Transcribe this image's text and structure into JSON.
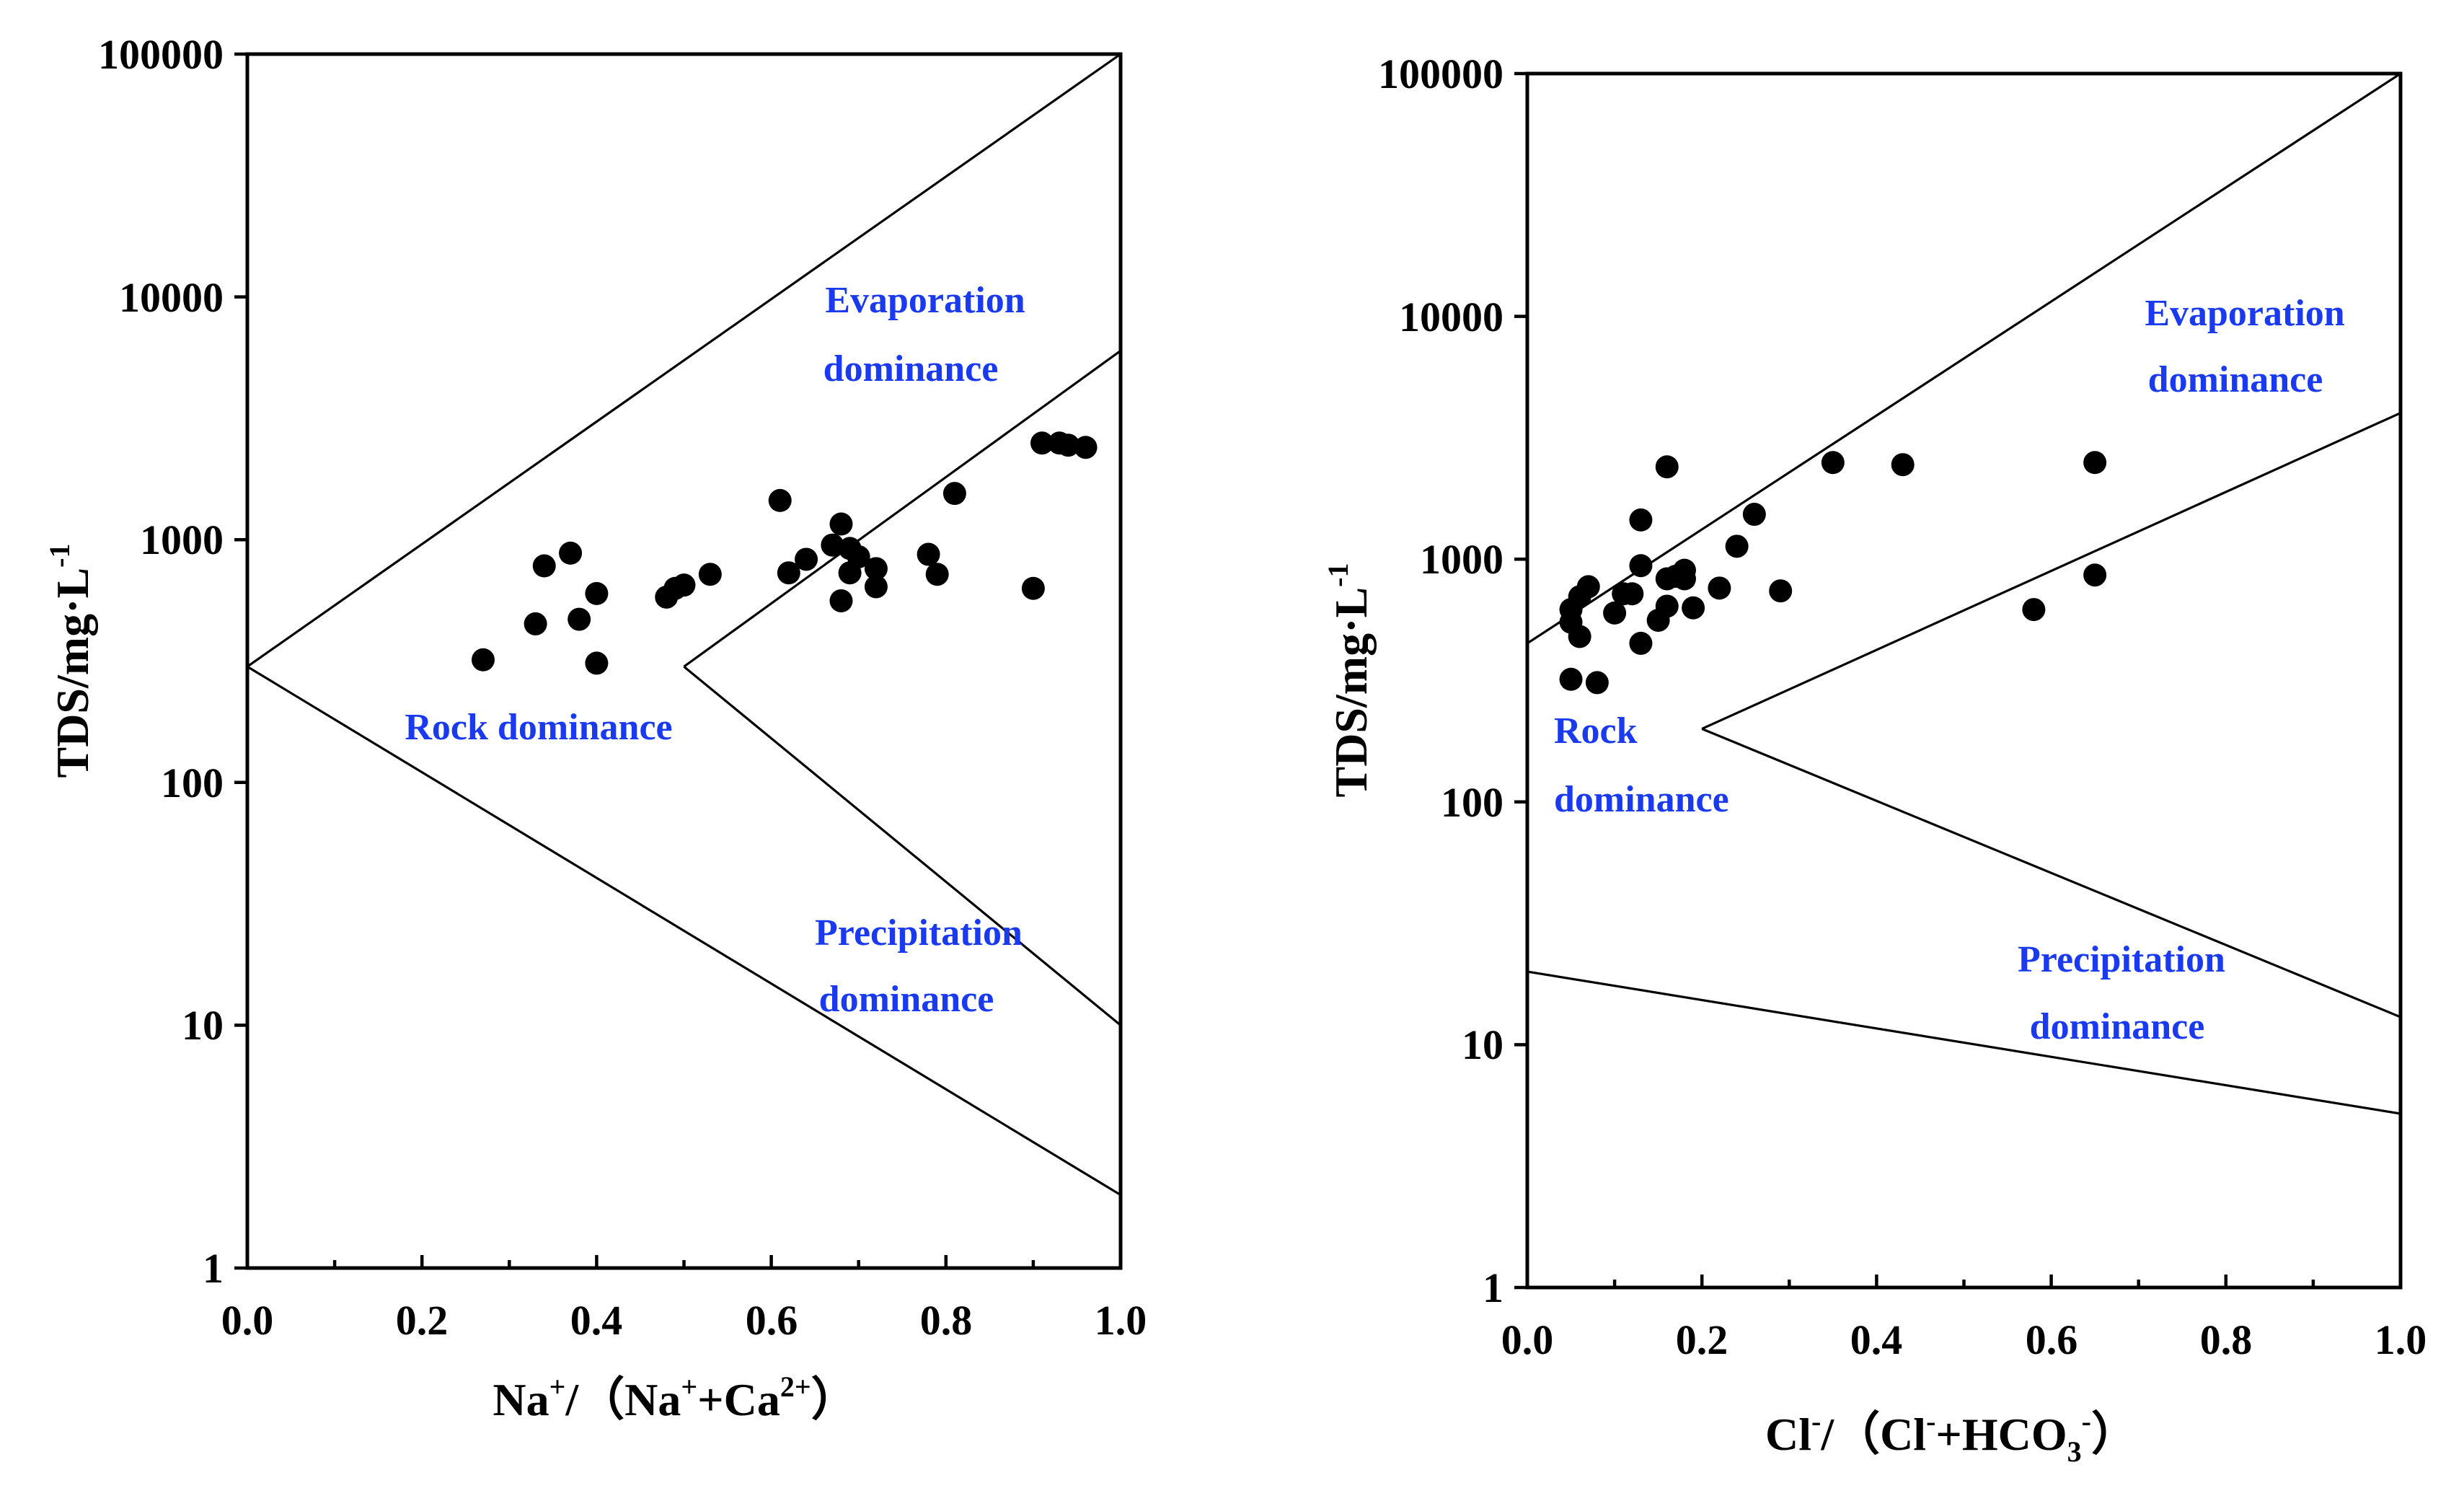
{
  "chart_data": [
    {
      "type": "scatter",
      "y_scale": "log",
      "ylim": [
        1,
        100000
      ],
      "xlim": [
        0,
        1
      ],
      "yticks": [
        "1",
        "10",
        "100",
        "1000",
        "10000",
        "100000"
      ],
      "xticks": [
        "0.0",
        "0.2",
        "0.4",
        "0.6",
        "0.8",
        "1.0"
      ],
      "ylabel": {
        "main": "TDS/mg·L",
        "sup": "-1"
      },
      "xlabel": [
        "Na",
        "+",
        "/（Na",
        "+",
        "+Ca",
        "2+",
        "）"
      ],
      "region_labels": {
        "evaporation": [
          "Evaporation",
          "dominance"
        ],
        "rock": [
          "Rock dominance"
        ],
        "precipitation": [
          "Precipitation",
          "dominance"
        ]
      },
      "boundary_lines": [
        [
          [
            0.0,
            300
          ],
          [
            1.0,
            100000
          ]
        ],
        [
          [
            0.0,
            300
          ],
          [
            1.0,
            2
          ]
        ],
        [
          [
            0.5,
            300
          ],
          [
            1.0,
            6000
          ]
        ],
        [
          [
            0.5,
            300
          ],
          [
            1.0,
            10
          ]
        ]
      ],
      "points": [
        [
          0.27,
          320
        ],
        [
          0.34,
          780
        ],
        [
          0.37,
          880
        ],
        [
          0.33,
          450
        ],
        [
          0.38,
          470
        ],
        [
          0.4,
          600
        ],
        [
          0.4,
          310
        ],
        [
          0.48,
          580
        ],
        [
          0.49,
          630
        ],
        [
          0.5,
          650
        ],
        [
          0.53,
          720
        ],
        [
          0.61,
          1450
        ],
        [
          0.62,
          730
        ],
        [
          0.64,
          830
        ],
        [
          0.67,
          950
        ],
        [
          0.68,
          1160
        ],
        [
          0.68,
          560
        ],
        [
          0.69,
          920
        ],
        [
          0.69,
          730
        ],
        [
          0.7,
          850
        ],
        [
          0.72,
          760
        ],
        [
          0.72,
          640
        ],
        [
          0.78,
          870
        ],
        [
          0.79,
          720
        ],
        [
          0.81,
          1550
        ],
        [
          0.91,
          2500
        ],
        [
          0.93,
          2500
        ],
        [
          0.94,
          2450
        ],
        [
          0.96,
          2400
        ],
        [
          0.9,
          630
        ]
      ]
    },
    {
      "type": "scatter",
      "y_scale": "log",
      "ylim": [
        1,
        100000
      ],
      "xlim": [
        0,
        1
      ],
      "yticks": [
        "1",
        "10",
        "100",
        "1000",
        "10000",
        "100000"
      ],
      "xticks": [
        "0.0",
        "0.2",
        "0.4",
        "0.6",
        "0.8",
        "1.0"
      ],
      "ylabel": {
        "main": "TDS/mg·L",
        "sup": "-1"
      },
      "xlabel": [
        "Cl",
        "-",
        "/（Cl",
        "-",
        "+HCO",
        "3",
        "-",
        "）"
      ],
      "region_labels": {
        "evaporation": [
          "Evaporation",
          "dominance"
        ],
        "rock": [
          "Rock",
          "dominance"
        ],
        "precipitation": [
          "Precipitation",
          "dominance"
        ]
      },
      "boundary_lines": [
        [
          [
            0.0,
            450
          ],
          [
            1.0,
            100000
          ]
        ],
        [
          [
            0.2,
            200
          ],
          [
            1.0,
            4000
          ]
        ],
        [
          [
            0.2,
            200
          ],
          [
            1.0,
            13
          ]
        ],
        [
          [
            0.0,
            20
          ],
          [
            1.0,
            5.2
          ]
        ]
      ],
      "points": [
        [
          0.05,
          620
        ],
        [
          0.05,
          320
        ],
        [
          0.05,
          550
        ],
        [
          0.06,
          700
        ],
        [
          0.06,
          480
        ],
        [
          0.07,
          770
        ],
        [
          0.08,
          310
        ],
        [
          0.1,
          600
        ],
        [
          0.11,
          720
        ],
        [
          0.12,
          720
        ],
        [
          0.13,
          450
        ],
        [
          0.13,
          1450
        ],
        [
          0.13,
          940
        ],
        [
          0.15,
          560
        ],
        [
          0.16,
          2400
        ],
        [
          0.16,
          830
        ],
        [
          0.16,
          640
        ],
        [
          0.17,
          850
        ],
        [
          0.18,
          900
        ],
        [
          0.18,
          830
        ],
        [
          0.19,
          630
        ],
        [
          0.22,
          760
        ],
        [
          0.24,
          1130
        ],
        [
          0.26,
          1530
        ],
        [
          0.29,
          740
        ],
        [
          0.35,
          2500
        ],
        [
          0.43,
          2450
        ],
        [
          0.58,
          620
        ],
        [
          0.65,
          2500
        ],
        [
          0.65,
          860
        ]
      ]
    }
  ]
}
